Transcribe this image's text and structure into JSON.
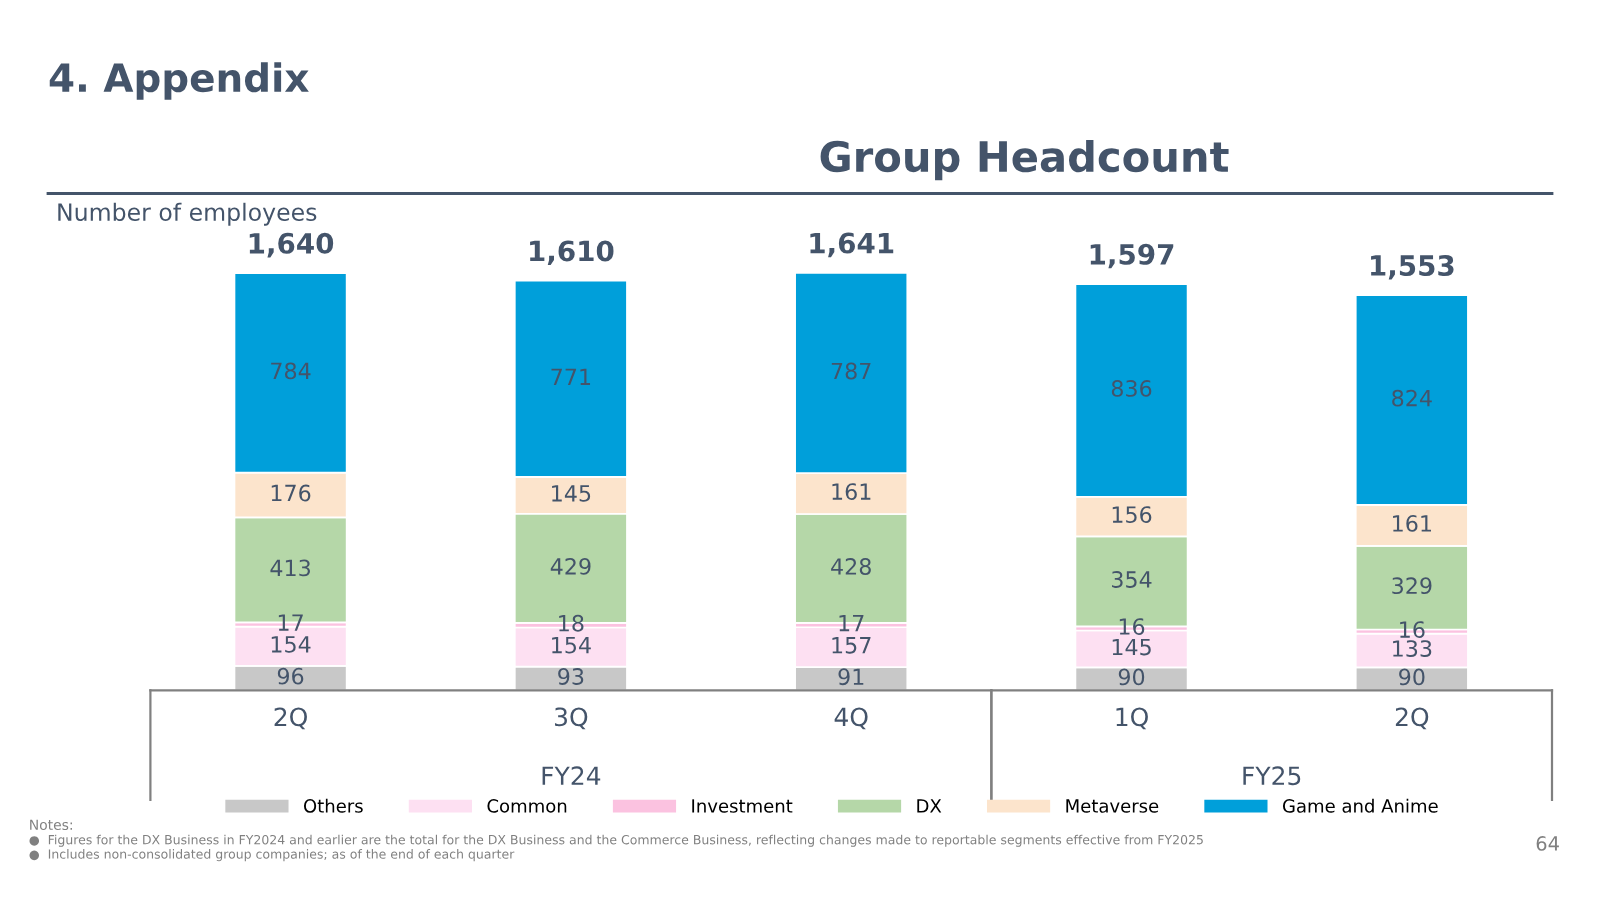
{
  "chart_data": {
    "type": "bar",
    "title": "Group Headcount",
    "ylabel": "Number of employees",
    "categories": [
      "2Q",
      "3Q",
      "4Q",
      "1Q",
      "2Q"
    ],
    "stacked": true,
    "data_labels": true,
    "legend": "bottom",
    "grid": false,
    "series": [
      {
        "name": "Others",
        "color": "#c8c8c8",
        "values": [
          96,
          93,
          91,
          90,
          90
        ]
      },
      {
        "name": "Common",
        "color": "#fde0f2",
        "values": [
          154,
          154,
          157,
          145,
          133
        ]
      },
      {
        "name": "Investment",
        "color": "#fbc2e0",
        "values": [
          17,
          18,
          17,
          16,
          16
        ]
      },
      {
        "name": "DX",
        "color": "#b5d7a8",
        "values": [
          413,
          429,
          428,
          354,
          329
        ]
      },
      {
        "name": "Metaverse",
        "color": "#fce4cc",
        "values": [
          176,
          145,
          161,
          156,
          161
        ]
      },
      {
        "name": "Game and Anime",
        "color": "#009fda",
        "values": [
          784,
          771,
          787,
          836,
          824
        ]
      }
    ],
    "totals": [
      "1,640",
      "1,610",
      "1,641",
      "1,597",
      "1,553"
    ],
    "annotations": [
      "4. Appendix",
      "FY24",
      "FY25",
      "Notes:",
      "●  Figures for the DX Business in FY2024 and earlier are the total for the DX Business and the Commerce Business, reflecting changes made to reportable segments effective from FY2025",
      "●  Includes non-consolidated group companies; as of the end of each quarter",
      "64"
    ]
  }
}
